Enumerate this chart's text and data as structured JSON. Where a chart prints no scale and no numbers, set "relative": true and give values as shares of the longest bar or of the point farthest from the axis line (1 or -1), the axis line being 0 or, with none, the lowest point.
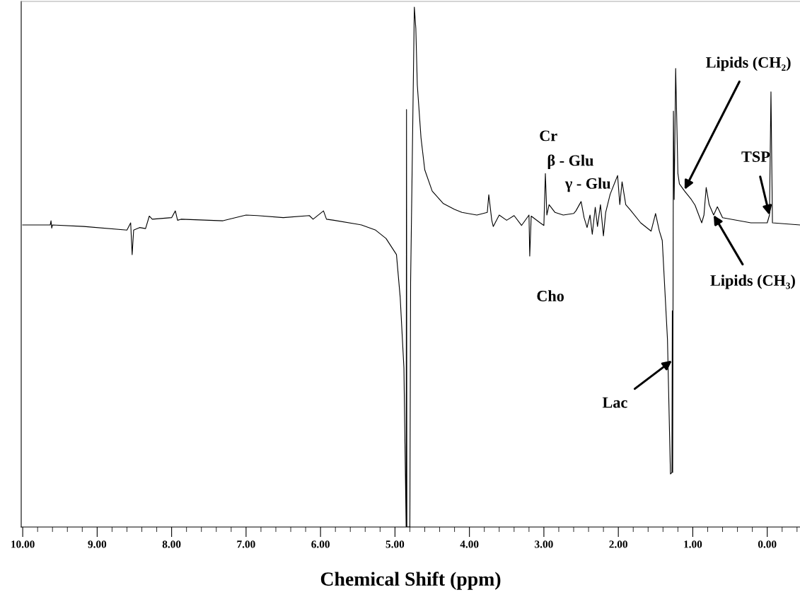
{
  "chart_data": {
    "type": "line",
    "relative": true,
    "xlabel": "Chemical Shift (ppm)",
    "x": [
      10.0,
      9.63,
      9.62,
      9.61,
      9.6,
      9.18,
      8.6,
      8.55,
      8.53,
      8.51,
      8.43,
      8.35,
      8.3,
      8.26,
      8.0,
      7.95,
      7.92,
      7.87,
      7.31,
      7.0,
      6.85,
      6.5,
      6.15,
      6.1,
      5.96,
      5.92,
      5.82,
      5.45,
      5.26,
      5.12,
      4.98,
      4.93,
      4.88,
      4.86,
      4.85,
      4.845,
      4.84,
      4.8,
      4.79,
      4.74,
      4.72,
      4.7,
      4.65,
      4.6,
      4.5,
      4.35,
      4.2,
      4.1,
      3.9,
      3.76,
      3.74,
      3.7,
      3.68,
      3.6,
      3.5,
      3.4,
      3.3,
      3.2,
      3.19,
      3.17,
      3.05,
      3.0,
      2.98,
      2.96,
      2.93,
      2.85,
      2.74,
      2.6,
      2.57,
      2.5,
      2.46,
      2.42,
      2.38,
      2.35,
      2.31,
      2.28,
      2.24,
      2.2,
      2.17,
      2.11,
      2.01,
      1.98,
      1.95,
      1.9,
      1.84,
      1.7,
      1.56,
      1.5,
      1.45,
      1.41,
      1.34,
      1.3,
      1.28,
      1.275,
      1.27,
      1.26,
      1.25,
      1.23,
      1.2,
      1.18,
      1.11,
      1.02,
      0.97,
      0.88,
      0.85,
      0.82,
      0.78,
      0.72,
      0.67,
      0.6,
      0.22,
      0.0,
      -0.03,
      -0.05,
      -0.07,
      -0.44
    ],
    "series": [
      {
        "color": "#000000",
        "values": [
          0.581,
          0.581,
          0.589,
          0.575,
          0.581,
          0.578,
          0.571,
          0.585,
          0.524,
          0.571,
          0.576,
          0.574,
          0.598,
          0.592,
          0.595,
          0.608,
          0.59,
          0.592,
          0.589,
          0.6,
          0.599,
          0.595,
          0.599,
          0.592,
          0.608,
          0.592,
          0.59,
          0.581,
          0.571,
          0.555,
          0.524,
          0.442,
          0.306,
          0.1,
          0,
          0.803,
          0,
          0,
          0.469,
          1,
          0.959,
          0.85,
          0.748,
          0.687,
          0.646,
          0.622,
          0.611,
          0.605,
          0.6,
          0.605,
          0.639,
          0.59,
          0.578,
          0.6,
          0.59,
          0.599,
          0.58,
          0.6,
          0.521,
          0.598,
          0.585,
          0.58,
          0.68,
          0.6,
          0.62,
          0.605,
          0.6,
          0.603,
          0.608,
          0.626,
          0.595,
          0.576,
          0.6,
          0.563,
          0.615,
          0.578,
          0.62,
          0.56,
          0.605,
          0.64,
          0.676,
          0.62,
          0.664,
          0.62,
          0.61,
          0.585,
          0.569,
          0.603,
          0.57,
          0.551,
          0.361,
          0.102,
          0.105,
          0.416,
          0.105,
          0.8,
          0.63,
          0.882,
          0.68,
          0.66,
          0.646,
          0.63,
          0.619,
          0.585,
          0.6,
          0.653,
          0.62,
          0.6,
          0.616,
          0.595,
          0.585,
          0.585,
          0.6,
          0.837,
          0.585,
          0.581
        ]
      }
    ],
    "xlim": [
      10.02,
      -0.44
    ],
    "xticks": [
      {
        "value": 10,
        "label": "10.00"
      },
      {
        "value": 9,
        "label": "9.00"
      },
      {
        "value": 8,
        "label": "8.00"
      },
      {
        "value": 7,
        "label": "7.00"
      },
      {
        "value": 6,
        "label": "6.00"
      },
      {
        "value": 5,
        "label": "5.00"
      },
      {
        "value": 4,
        "label": "4.00"
      },
      {
        "value": 3,
        "label": "3.00"
      },
      {
        "value": 2,
        "label": "2.00"
      },
      {
        "value": 1,
        "label": "1.00"
      },
      {
        "value": 0,
        "label": "0.00"
      }
    ],
    "grid": false,
    "annotations": [
      {
        "text": "Cr",
        "x": 2.98,
        "y": 0.68
      },
      {
        "text": "Cho",
        "x": 3.19,
        "y": 0.521
      },
      {
        "text": "γ - Glu",
        "x": 2.5,
        "y": 0.626
      },
      {
        "text": "β - Glu",
        "x": 2.01,
        "y": 0.676
      },
      {
        "text": "Lac",
        "x": 1.28,
        "y": 0.32
      },
      {
        "text": "Lipids (CH₂)",
        "x": 1.11,
        "y": 0.649
      },
      {
        "text": "Lipids (CH₃)",
        "x": 0.72,
        "y": 0.6
      },
      {
        "text": "TSP",
        "x": -0.03,
        "y": 0.6
      }
    ]
  }
}
